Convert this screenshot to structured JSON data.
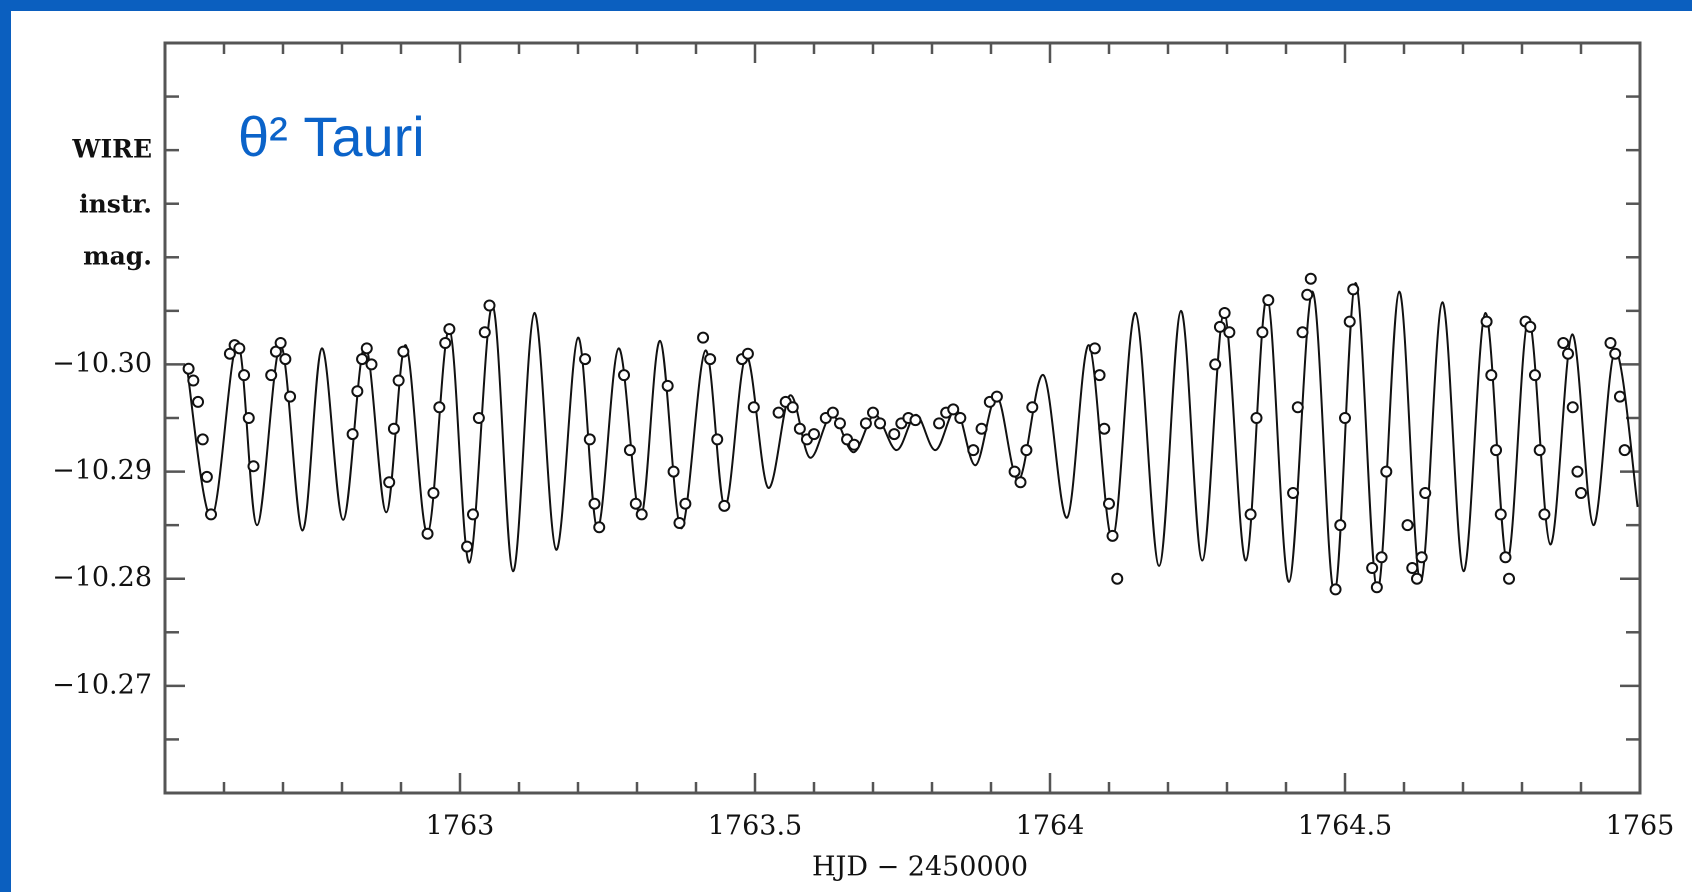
{
  "chart_data": {
    "type": "scatter+line",
    "title": "θ² Tauri",
    "ylabel": [
      "WIRE",
      "instr.",
      "mag."
    ],
    "xlabel": "HJD − 2450000",
    "xlim": [
      1762.5,
      1765
    ],
    "ylim": [
      -10.33,
      -10.26
    ],
    "y_inverted": true,
    "xticks": [
      1763,
      1763.5,
      1764,
      1764.5,
      1765
    ],
    "xminorticks": [
      1762.6,
      1762.7,
      1762.8,
      1762.9,
      1763.1,
      1763.2,
      1763.3,
      1763.4,
      1763.6,
      1763.7,
      1763.8,
      1763.9,
      1764.1,
      1764.2,
      1764.3,
      1764.4,
      1764.6,
      1764.7,
      1764.8,
      1764.9
    ],
    "yticks": [
      {
        "value": -10.3,
        "label": "−10.30"
      },
      {
        "value": -10.29,
        "label": "−10.29"
      },
      {
        "value": -10.28,
        "label": "−10.28"
      },
      {
        "value": -10.27,
        "label": "−10.27"
      }
    ],
    "yminorticks": [
      -10.325,
      -10.32,
      -10.315,
      -10.31,
      -10.305,
      -10.295,
      -10.285,
      -10.275,
      -10.265
    ],
    "series": [
      {
        "kind": "line",
        "color": "#111111",
        "x": [
          1762.537,
          1762.579,
          1762.623,
          1762.656,
          1762.696,
          1762.733,
          1762.766,
          1762.802,
          1762.839,
          1762.875,
          1762.908,
          1762.945,
          1762.982,
          1763.016,
          1763.055,
          1763.09,
          1763.126,
          1763.163,
          1763.2,
          1763.233,
          1763.269,
          1763.306,
          1763.339,
          1763.375,
          1763.416,
          1763.449,
          1763.485,
          1763.522,
          1763.559,
          1763.593,
          1763.63,
          1763.667,
          1763.703,
          1763.74,
          1763.773,
          1763.806,
          1763.841,
          1763.874,
          1763.91,
          1763.947,
          1763.989,
          1764.029,
          1764.066,
          1764.106,
          1764.145,
          1764.185,
          1764.222,
          1764.258,
          1764.295,
          1764.332,
          1764.368,
          1764.405,
          1764.445,
          1764.482,
          1764.518,
          1764.555,
          1764.592,
          1764.628,
          1764.665,
          1764.701,
          1764.738,
          1764.775,
          1764.811,
          1764.848,
          1764.885,
          1764.921,
          1764.958,
          1764.996
        ],
        "values": [
          -10.2998,
          -10.2857,
          -10.302,
          -10.285,
          -10.3018,
          -10.2845,
          -10.3015,
          -10.2855,
          -10.3018,
          -10.2862,
          -10.3018,
          -10.2842,
          -10.3033,
          -10.2815,
          -10.3055,
          -10.2807,
          -10.3048,
          -10.2827,
          -10.3025,
          -10.2847,
          -10.3015,
          -10.2857,
          -10.3022,
          -10.2847,
          -10.3013,
          -10.2867,
          -10.3008,
          -10.2885,
          -10.2971,
          -10.2913,
          -10.2953,
          -10.2918,
          -10.2953,
          -10.292,
          -10.2953,
          -10.292,
          -10.2958,
          -10.2906,
          -10.297,
          -10.2892,
          -10.299,
          -10.2857,
          -10.3018,
          -10.2837,
          -10.3048,
          -10.2812,
          -10.305,
          -10.2817,
          -10.3048,
          -10.2817,
          -10.3063,
          -10.2797,
          -10.3068,
          -10.2787,
          -10.3076,
          -10.2789,
          -10.3068,
          -10.2797,
          -10.3058,
          -10.2807,
          -10.3048,
          -10.2817,
          -10.3043,
          -10.2832,
          -10.3028,
          -10.285,
          -10.3013,
          -10.2867
        ]
      },
      {
        "kind": "points",
        "color": "#111111",
        "x": [
          1762.54,
          1762.548,
          1762.556,
          1762.564,
          1762.571,
          1762.578,
          1762.61,
          1762.618,
          1762.626,
          1762.634,
          1762.642,
          1762.65,
          1762.68,
          1762.688,
          1762.696,
          1762.704,
          1762.712,
          1762.818,
          1762.826,
          1762.834,
          1762.842,
          1762.85,
          1762.88,
          1762.888,
          1762.896,
          1762.904,
          1762.945,
          1762.955,
          1762.965,
          1762.975,
          1762.982,
          1763.012,
          1763.022,
          1763.032,
          1763.042,
          1763.05,
          1763.212,
          1763.22,
          1763.228,
          1763.236,
          1763.278,
          1763.288,
          1763.298,
          1763.308,
          1763.352,
          1763.362,
          1763.372,
          1763.382,
          1763.412,
          1763.424,
          1763.436,
          1763.448,
          1763.478,
          1763.488,
          1763.498,
          1763.54,
          1763.552,
          1763.564,
          1763.576,
          1763.588,
          1763.6,
          1763.62,
          1763.632,
          1763.644,
          1763.656,
          1763.668,
          1763.688,
          1763.7,
          1763.712,
          1763.736,
          1763.748,
          1763.76,
          1763.772,
          1763.812,
          1763.824,
          1763.836,
          1763.848,
          1763.87,
          1763.884,
          1763.898,
          1763.91,
          1763.94,
          1763.95,
          1763.96,
          1763.97,
          1764.076,
          1764.084,
          1764.092,
          1764.1,
          1764.106,
          1764.114,
          1764.28,
          1764.288,
          1764.296,
          1764.304,
          1764.34,
          1764.35,
          1764.36,
          1764.37,
          1764.412,
          1764.42,
          1764.428,
          1764.436,
          1764.442,
          1764.484,
          1764.492,
          1764.5,
          1764.508,
          1764.514,
          1764.546,
          1764.554,
          1764.562,
          1764.57,
          1764.606,
          1764.614,
          1764.622,
          1764.63,
          1764.636,
          1764.74,
          1764.748,
          1764.756,
          1764.764,
          1764.772,
          1764.778,
          1764.806,
          1764.814,
          1764.822,
          1764.83,
          1764.838,
          1764.87,
          1764.878,
          1764.886,
          1764.894,
          1764.9,
          1764.95,
          1764.958,
          1764.966,
          1764.974
        ],
        "values": [
          -10.2996,
          -10.2985,
          -10.2965,
          -10.293,
          -10.2895,
          -10.286,
          -10.301,
          -10.3018,
          -10.3015,
          -10.299,
          -10.295,
          -10.2905,
          -10.299,
          -10.3012,
          -10.302,
          -10.3005,
          -10.297,
          -10.2935,
          -10.2975,
          -10.3005,
          -10.3015,
          -10.3,
          -10.289,
          -10.294,
          -10.2985,
          -10.3012,
          -10.2842,
          -10.288,
          -10.296,
          -10.302,
          -10.3033,
          -10.283,
          -10.286,
          -10.295,
          -10.303,
          -10.3055,
          -10.3005,
          -10.293,
          -10.287,
          -10.2848,
          -10.299,
          -10.292,
          -10.287,
          -10.286,
          -10.298,
          -10.29,
          -10.2852,
          -10.287,
          -10.3025,
          -10.3005,
          -10.293,
          -10.2868,
          -10.3005,
          -10.301,
          -10.296,
          -10.2955,
          -10.2965,
          -10.296,
          -10.294,
          -10.293,
          -10.2935,
          -10.295,
          -10.2955,
          -10.2945,
          -10.293,
          -10.2925,
          -10.2945,
          -10.2955,
          -10.2945,
          -10.2935,
          -10.2945,
          -10.295,
          -10.2948,
          -10.2945,
          -10.2955,
          -10.2958,
          -10.295,
          -10.292,
          -10.294,
          -10.2965,
          -10.297,
          -10.29,
          -10.289,
          -10.292,
          -10.296,
          -10.3015,
          -10.299,
          -10.294,
          -10.287,
          -10.284,
          -10.28,
          -10.3,
          -10.3035,
          -10.3048,
          -10.303,
          -10.286,
          -10.295,
          -10.303,
          -10.306,
          -10.288,
          -10.296,
          -10.303,
          -10.3065,
          -10.308,
          -10.279,
          -10.285,
          -10.295,
          -10.304,
          -10.307,
          -10.281,
          -10.2792,
          -10.282,
          -10.29,
          -10.285,
          -10.281,
          -10.28,
          -10.282,
          -10.288,
          -10.304,
          -10.299,
          -10.292,
          -10.286,
          -10.282,
          -10.28,
          -10.304,
          -10.3035,
          -10.299,
          -10.292,
          -10.286,
          -10.302,
          -10.301,
          -10.296,
          -10.29,
          -10.288,
          -10.302,
          -10.301,
          -10.297,
          -10.292
        ]
      }
    ]
  }
}
